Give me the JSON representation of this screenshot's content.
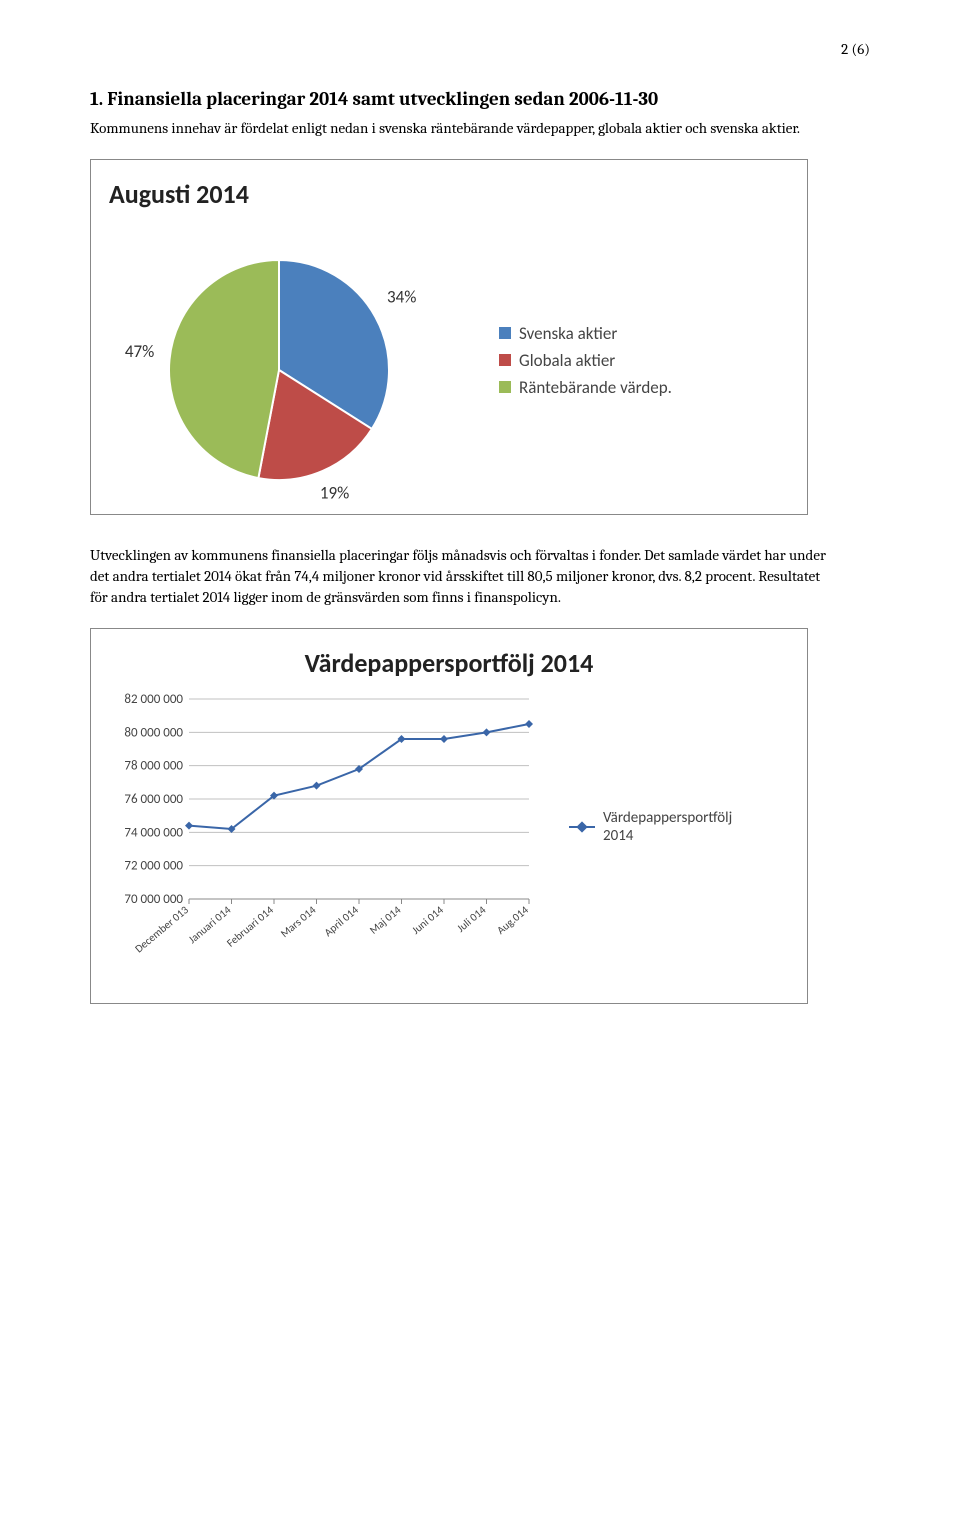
{
  "page_number": "2 (6)",
  "section_heading_1": "1. Finansiella placeringar 2014 samt utvecklingen sedan 2006-11-30",
  "intro_paragraph": "Kommunens innehav är fördelat enligt nedan i svenska räntebärande värdepapper, globala aktier och svenska aktier.",
  "pie_chart": {
    "title": "Augusti 2014",
    "type": "pie",
    "background_color": "#ffffff",
    "border_color": "#888888",
    "slices": [
      {
        "label": "Svenska aktier",
        "value": 34,
        "pct_label": "34%",
        "color": "#4b80bd"
      },
      {
        "label": "Globala aktier",
        "value": 19,
        "pct_label": "19%",
        "color": "#be4c48"
      },
      {
        "label": "Räntebärande värdep.",
        "value": 47,
        "pct_label": "47%",
        "color": "#9bbb58"
      }
    ],
    "label_fontsize": 17,
    "title_fontsize": 26,
    "slice_stroke": "#ffffff",
    "slice_stroke_width": 2
  },
  "body_paragraph": "Utvecklingen av kommunens finansiella placeringar följs månadsvis och förvaltas i fonder. Det samlade värdet har under det andra tertialet 2014 ökat från 74,4 miljoner kronor vid årsskiftet till 80,5 miljoner kronor, dvs. 8,2 procent. Resultatet för andra tertialet 2014 ligger inom de gränsvärden som finns i finanspolicyn.",
  "line_chart": {
    "title": "Värdepappersportfölj 2014",
    "type": "line",
    "background_color": "#ffffff",
    "border_color": "#888888",
    "grid_color": "#c0c0c0",
    "axis_color": "#888888",
    "line_color": "#3a66a8",
    "marker_color": "#3a66a8",
    "marker_shape": "diamond",
    "marker_size": 8,
    "line_width": 2,
    "ylim": [
      70000000,
      82000000
    ],
    "ytick_step": 2000000,
    "ytick_labels": [
      "70 000 000",
      "72 000 000",
      "74 000 000",
      "76 000 000",
      "78 000 000",
      "80 000 000",
      "82 000 000"
    ],
    "categories": [
      "December 013",
      "Januari 014",
      "Februari 014",
      "Mars 014",
      "April 014",
      "Maj 014",
      "Juni 014",
      "Juli 014",
      "Aug.014"
    ],
    "values": [
      74400000,
      74200000,
      76200000,
      76800000,
      77800000,
      79600000,
      79600000,
      80000000,
      80500000
    ],
    "legend_label": "Värdepappersportfölj 2014",
    "title_fontsize": 26,
    "axis_fontsize": 13,
    "cat_fontsize": 11,
    "cat_rotation_deg": -40
  }
}
